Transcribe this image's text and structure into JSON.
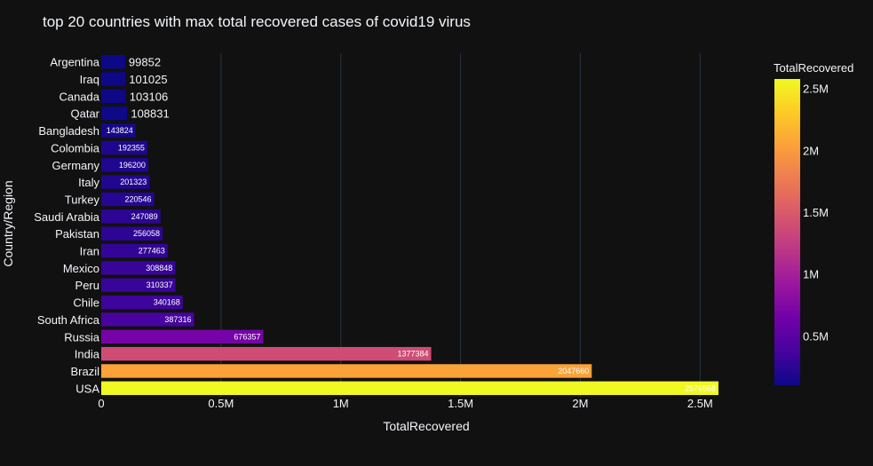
{
  "chart_data": {
    "type": "bar",
    "orientation": "horizontal",
    "title": "top 20 countries with max total recovered cases of covid19 virus",
    "xlabel": "TotalRecovered",
    "ylabel": "Country/Region",
    "xlim": [
      0,
      2576668
    ],
    "x_ticks": [
      0,
      500000,
      1000000,
      1500000,
      2000000,
      2500000
    ],
    "x_tick_labels": [
      "0",
      "0.5M",
      "1M",
      "1.5M",
      "2M",
      "2.5M"
    ],
    "grid": true,
    "categories": [
      "Argentina",
      "Iraq",
      "Canada",
      "Qatar",
      "Bangladesh",
      "Colombia",
      "Germany",
      "Italy",
      "Turkey",
      "Saudi Arabia",
      "Pakistan",
      "Iran",
      "Mexico",
      "Peru",
      "Chile",
      "South Africa",
      "Russia",
      "India",
      "Brazil",
      "USA"
    ],
    "values": [
      99852,
      101025,
      103106,
      108831,
      143824,
      192355,
      196200,
      201323,
      220546,
      247089,
      256058,
      277463,
      308848,
      310337,
      340168,
      387316,
      676357,
      1377384,
      2047660,
      2576668
    ],
    "data_labels": [
      "99852",
      "101025",
      "103106",
      "108831",
      "143824",
      "192355",
      "196200",
      "201323",
      "220546",
      "247089",
      "256058",
      "277463",
      "308848",
      "310337",
      "340168",
      "387316",
      "676357",
      "1377384",
      "2047660",
      "2576668"
    ],
    "colorscale": "plasma",
    "colorbar": {
      "title": "TotalRecovered",
      "range": [
        99852,
        2576668
      ],
      "ticks": [
        500000,
        1000000,
        1500000,
        2000000,
        2500000
      ],
      "tick_labels": [
        "0.5M",
        "1M",
        "1.5M",
        "2M",
        "2.5M"
      ],
      "placement": "right"
    }
  },
  "colors": {
    "background": "#111111",
    "grid": "#283442",
    "text": "#f2f5fa"
  }
}
